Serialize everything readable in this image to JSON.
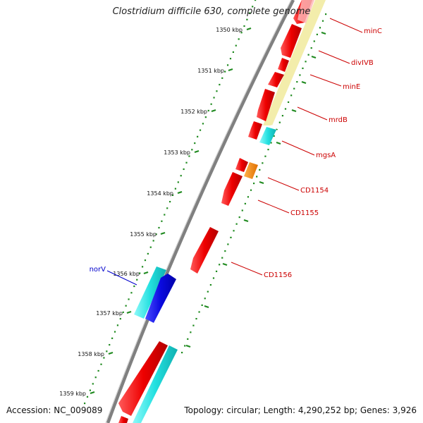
{
  "title": "Clostridium difficile 630, complete genome",
  "accession": "Accession: NC_009089",
  "summary": "Topology: circular; Length: 4,290,252 bp; Genes: 3,926",
  "colors": {
    "backbone": "#777777",
    "tick": "#1f8a1f",
    "label": "#cc0000",
    "label_alt": "#0000cc",
    "gene_red": "#ff1a1a",
    "gene_cyan": "#33e6e6",
    "gene_blue": "#1515e0",
    "gene_orange": "#ff8800",
    "gene_yellow": "#f2eca6"
  },
  "scale_labels": [
    "1350 kbp",
    "1351 kbp",
    "1352 kbp",
    "1353 kbp",
    "1354 kbp",
    "1355 kbp",
    "1356 kbp",
    "1357 kbp",
    "1358 kbp",
    "1359 kbp"
  ],
  "gene_labels": [
    "minC",
    "divIVB",
    "minE",
    "mrdB",
    "mgsA",
    "CD1154",
    "CD1155",
    "CD1156",
    "norV"
  ]
}
